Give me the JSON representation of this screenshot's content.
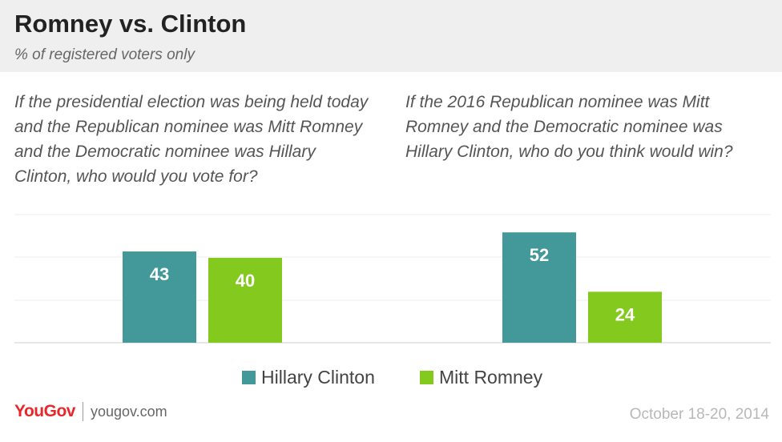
{
  "header": {
    "title": "Romney vs. Clinton",
    "subtitle": "% of registered voters only"
  },
  "questions": {
    "left": "If the presidential election was being held today and the Republican nominee was Mitt Romney and the Democratic nominee was Hillary Clinton, who would you vote for?",
    "right": "If the 2016 Republican nominee was Mitt Romney and the Democratic nominee was Hillary Clinton, who do you think would win?"
  },
  "colors": {
    "clinton": "#43999a",
    "romney": "#84c91e"
  },
  "chart_data": [
    {
      "type": "bar",
      "title": "If the presidential election was being held today and the Republican nominee was Mitt Romney and the Democratic nominee was Hillary Clinton, who would you vote for?",
      "categories": [
        "Hillary Clinton",
        "Mitt Romney"
      ],
      "values": [
        43,
        40
      ],
      "ylim": [
        0,
        60
      ],
      "grid": true
    },
    {
      "type": "bar",
      "title": "If the 2016 Republican nominee was Mitt Romney and the Democratic nominee was Hillary Clinton, who do you think would win?",
      "categories": [
        "Hillary Clinton",
        "Mitt Romney"
      ],
      "values": [
        52,
        24
      ],
      "ylim": [
        0,
        60
      ],
      "grid": true
    }
  ],
  "legend": {
    "items": [
      {
        "label": "Hillary Clinton",
        "color": "#43999a"
      },
      {
        "label": "Mitt Romney",
        "color": "#84c91e"
      }
    ],
    "placement": "bottom-center"
  },
  "footer": {
    "brand": "YouGov",
    "url": "yougov.com",
    "date": "October 18-20, 2014"
  }
}
